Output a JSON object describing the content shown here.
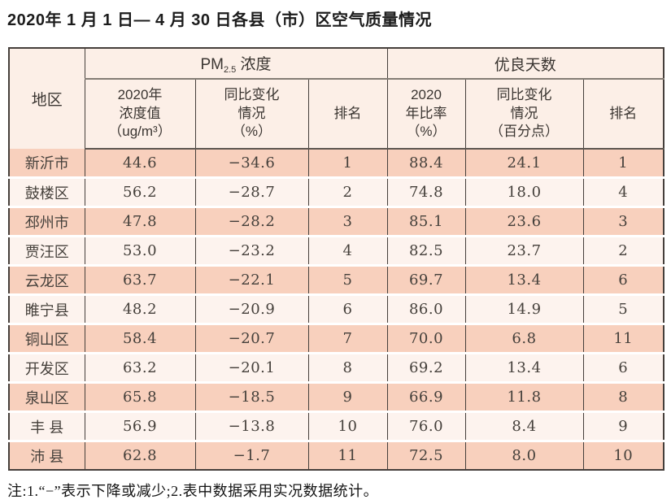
{
  "title": "2020年 1 月 1 日— 4 月 30 日各县（市）区空气质量情况",
  "colors": {
    "row_salmon": "#f8d0bd",
    "row_light": "#fdf3ee",
    "header_bg": "#fcefe7",
    "border_dark": "#453f3b"
  },
  "table": {
    "region_header": "地区",
    "pm_group": {
      "prefix": "PM",
      "sub": "2.5",
      "suffix": " 浓度"
    },
    "good_group": "优良天数",
    "sub_headers": {
      "pm_value": "2020年\n浓度值\n（ug/m³）",
      "pm_change": "同比变化\n情况\n（%）",
      "pm_rank": "排名",
      "good_ratio": "2020\n年比率\n（%）",
      "good_change": "同比变化\n情况\n（百分点）",
      "good_rank": "排名"
    },
    "rows": [
      {
        "region": "新沂市",
        "pm_value": "44.6",
        "pm_change": "−34.6",
        "pm_rank": "1",
        "good_ratio": "88.4",
        "good_change": "24.1",
        "good_rank": "1"
      },
      {
        "region": "鼓楼区",
        "pm_value": "56.2",
        "pm_change": "−28.7",
        "pm_rank": "2",
        "good_ratio": "74.8",
        "good_change": "18.0",
        "good_rank": "4"
      },
      {
        "region": "邳州市",
        "pm_value": "47.8",
        "pm_change": "−28.2",
        "pm_rank": "3",
        "good_ratio": "85.1",
        "good_change": "23.6",
        "good_rank": "3"
      },
      {
        "region": "贾汪区",
        "pm_value": "53.0",
        "pm_change": "−23.2",
        "pm_rank": "4",
        "good_ratio": "82.5",
        "good_change": "23.7",
        "good_rank": "2"
      },
      {
        "region": "云龙区",
        "pm_value": "63.7",
        "pm_change": "−22.1",
        "pm_rank": "5",
        "good_ratio": "69.7",
        "good_change": "13.4",
        "good_rank": "6"
      },
      {
        "region": "睢宁县",
        "pm_value": "48.2",
        "pm_change": "−20.9",
        "pm_rank": "6",
        "good_ratio": "86.0",
        "good_change": "14.9",
        "good_rank": "5"
      },
      {
        "region": "铜山区",
        "pm_value": "58.4",
        "pm_change": "−20.7",
        "pm_rank": "7",
        "good_ratio": "70.0",
        "good_change": "6.8",
        "good_rank": "11"
      },
      {
        "region": "开发区",
        "pm_value": "63.2",
        "pm_change": "−20.1",
        "pm_rank": "8",
        "good_ratio": "69.2",
        "good_change": "13.4",
        "good_rank": "6"
      },
      {
        "region": "泉山区",
        "pm_value": "65.8",
        "pm_change": "−18.5",
        "pm_rank": "9",
        "good_ratio": "66.9",
        "good_change": "11.8",
        "good_rank": "8"
      },
      {
        "region": "丰 县",
        "pm_value": "56.9",
        "pm_change": "−13.8",
        "pm_rank": "10",
        "good_ratio": "76.0",
        "good_change": "8.4",
        "good_rank": "9"
      },
      {
        "region": "沛 县",
        "pm_value": "62.8",
        "pm_change": "−1.7",
        "pm_rank": "11",
        "good_ratio": "72.5",
        "good_change": "8.0",
        "good_rank": "10"
      }
    ]
  },
  "note": "注:1.“−”表示下降或减少;2.表中数据采用实况数据统计。"
}
